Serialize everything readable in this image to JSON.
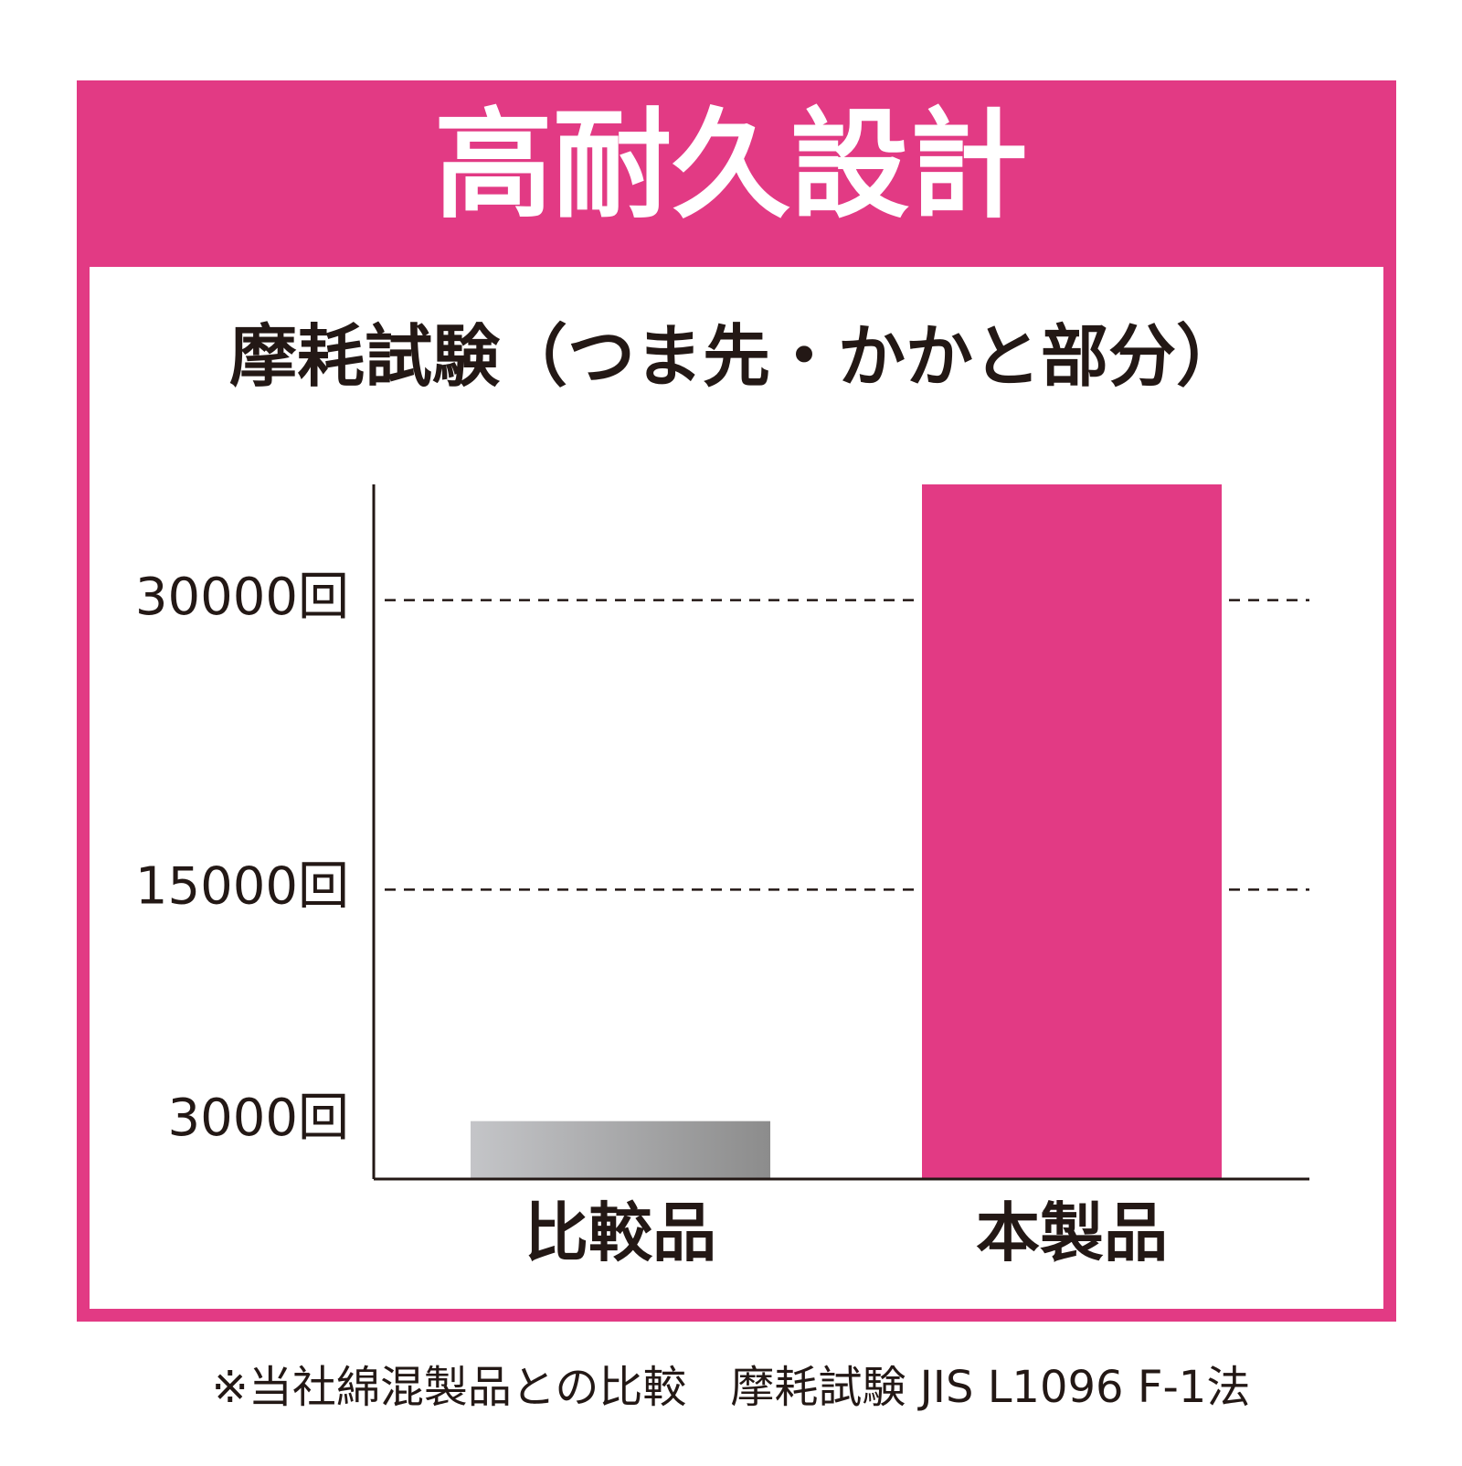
{
  "chart_data": {
    "type": "bar",
    "title": "高耐久設計",
    "subtitle": "摩耗試験（つま先・かかと部分）",
    "categories": [
      "比較品",
      "本製品"
    ],
    "values": [
      3000,
      36000
    ],
    "value_labels": [
      "3000回",
      null
    ],
    "colors": [
      "#a3a4a6",
      "#e23a84"
    ],
    "ylim": [
      0,
      36000
    ],
    "yticks": [
      {
        "value": 15000,
        "label": "15000回"
      },
      {
        "value": 30000,
        "label": "30000回"
      }
    ],
    "grid": true,
    "footnote": "※当社綿混製品との比較　摩耗試験 JIS L1096 F-1法"
  }
}
